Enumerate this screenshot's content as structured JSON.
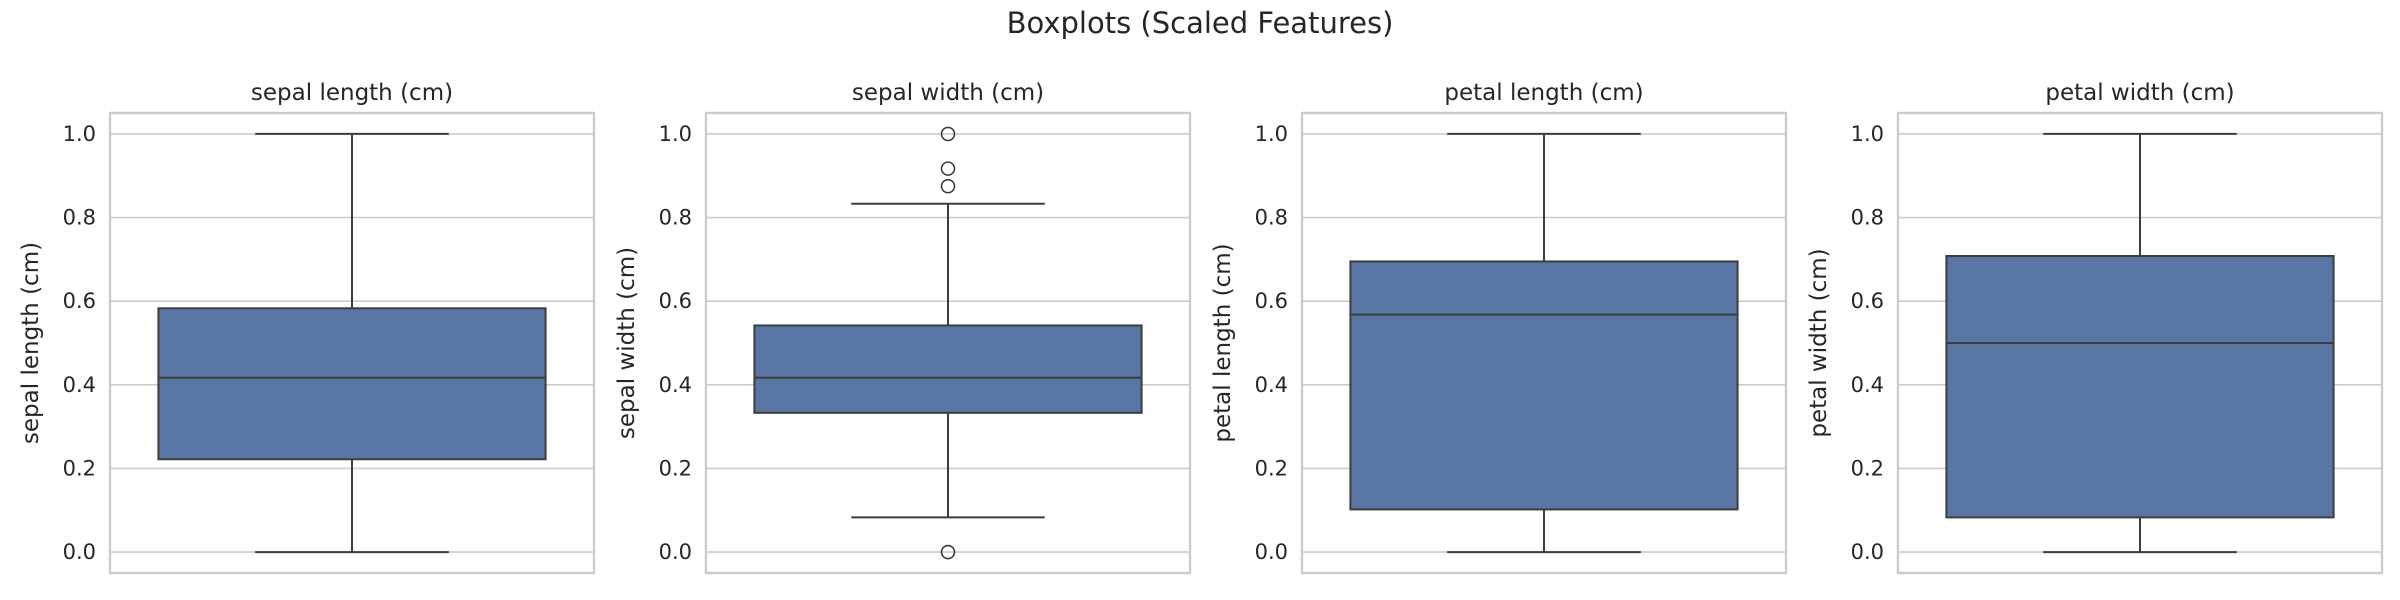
{
  "figure": {
    "title": "Boxplots (Scaled Features)"
  },
  "chart_data": [
    {
      "type": "boxplot",
      "title": "sepal length (cm)",
      "ylabel": "sepal length (cm)",
      "ylim": [
        -0.05,
        1.05
      ],
      "yticks": [
        "0.0",
        "0.2",
        "0.4",
        "0.6",
        "0.8",
        "1.0"
      ],
      "grid": true,
      "box": {
        "whisker_low": 0.0,
        "q1": 0.222,
        "median": 0.417,
        "q3": 0.583,
        "whisker_high": 1.0,
        "outliers": []
      },
      "color": "#5875a4"
    },
    {
      "type": "boxplot",
      "title": "sepal width (cm)",
      "ylabel": "sepal width (cm)",
      "ylim": [
        -0.05,
        1.05
      ],
      "yticks": [
        "0.0",
        "0.2",
        "0.4",
        "0.6",
        "0.8",
        "1.0"
      ],
      "grid": true,
      "box": {
        "whisker_low": 0.083,
        "q1": 0.333,
        "median": 0.417,
        "q3": 0.542,
        "whisker_high": 0.833,
        "outliers": [
          0.0,
          0.875,
          0.917,
          1.0
        ]
      },
      "color": "#5875a4"
    },
    {
      "type": "boxplot",
      "title": "petal length (cm)",
      "ylabel": "petal length (cm)",
      "ylim": [
        -0.05,
        1.05
      ],
      "yticks": [
        "0.0",
        "0.2",
        "0.4",
        "0.6",
        "0.8",
        "1.0"
      ],
      "grid": true,
      "box": {
        "whisker_low": 0.0,
        "q1": 0.102,
        "median": 0.568,
        "q3": 0.695,
        "whisker_high": 1.0,
        "outliers": []
      },
      "color": "#5875a4"
    },
    {
      "type": "boxplot",
      "title": "petal width (cm)",
      "ylabel": "petal width (cm)",
      "ylim": [
        -0.05,
        1.05
      ],
      "yticks": [
        "0.0",
        "0.2",
        "0.4",
        "0.6",
        "0.8",
        "1.0"
      ],
      "grid": true,
      "box": {
        "whisker_low": 0.0,
        "q1": 0.083,
        "median": 0.5,
        "q3": 0.708,
        "whisker_high": 1.0,
        "outliers": []
      },
      "color": "#5875a4"
    }
  ]
}
